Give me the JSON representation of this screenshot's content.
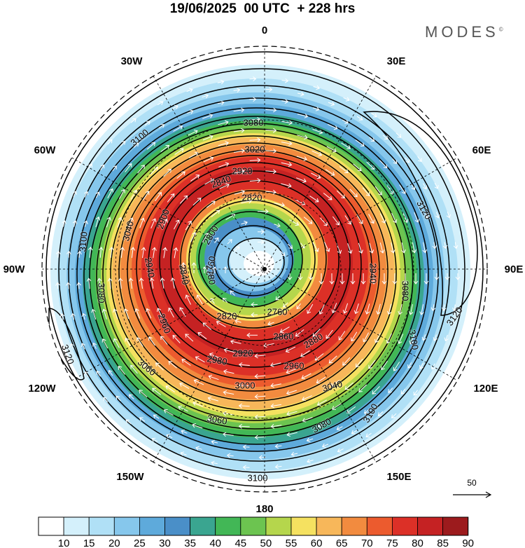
{
  "header": {
    "title": "19/06/2025  00 UTC  + 228 hrs",
    "brand": "MODES",
    "brand_mark": "©"
  },
  "map": {
    "projection": "south polar stereographic",
    "longitude_labels": [
      "0",
      "30E",
      "60E",
      "90E",
      "120E",
      "150E",
      "180",
      "150W",
      "120W",
      "90W",
      "60W",
      "30W"
    ],
    "contour_labels": [
      "2760",
      "2780",
      "2800",
      "2820",
      "2840",
      "2860",
      "2880",
      "2900",
      "2920",
      "2940",
      "2960",
      "2980",
      "3000",
      "3020",
      "3040",
      "3060",
      "3080",
      "3100",
      "3120"
    ],
    "wind_scale_label": "50",
    "colors": {
      "land": "#e4e4e4",
      "graticule": "#000000",
      "contour": "#000000",
      "arrows": "#ffffff"
    }
  },
  "colorbar": {
    "tick_labels": [
      "10",
      "15",
      "20",
      "25",
      "30",
      "35",
      "40",
      "45",
      "50",
      "55",
      "60",
      "65",
      "70",
      "75",
      "80",
      "85",
      "90"
    ],
    "colors": [
      "#ffffff",
      "#d4f0fb",
      "#b0e0f6",
      "#86c7ec",
      "#5eaadb",
      "#4a8fc8",
      "#3aa590",
      "#42b756",
      "#6cc450",
      "#b5d64c",
      "#f5e160",
      "#f7b75a",
      "#f28b3f",
      "#ec5b2e",
      "#dc3027",
      "#c52223",
      "#9c1b1d"
    ]
  }
}
